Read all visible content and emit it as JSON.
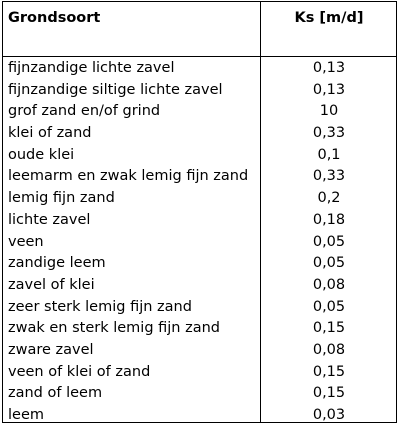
{
  "table": {
    "headers": [
      "Grondsoort",
      "Ks [m/d]"
    ],
    "rows": [
      [
        "fijnzandige lichte zavel",
        "0,13"
      ],
      [
        "fijnzandige siltige lichte zavel",
        "0,13"
      ],
      [
        "grof zand en/of grind",
        "10"
      ],
      [
        "klei of zand",
        "0,33"
      ],
      [
        "oude klei",
        "0,1"
      ],
      [
        "leemarm en zwak lemig fijn zand",
        "0,33"
      ],
      [
        "lemig fijn zand",
        "0,2"
      ],
      [
        "lichte zavel",
        "0,18"
      ],
      [
        "veen",
        "0,05"
      ],
      [
        "zandige leem",
        "0,05"
      ],
      [
        "zavel of klei",
        "0,08"
      ],
      [
        "zeer sterk lemig fijn zand",
        "0,05"
      ],
      [
        "zwak en sterk lemig fijn zand",
        "0,15"
      ],
      [
        "zware zavel",
        "0,08"
      ],
      [
        "veen of klei of zand",
        "0,15"
      ],
      [
        "zand of leem",
        "0,15"
      ],
      [
        "leem",
        "0,03"
      ]
    ]
  }
}
